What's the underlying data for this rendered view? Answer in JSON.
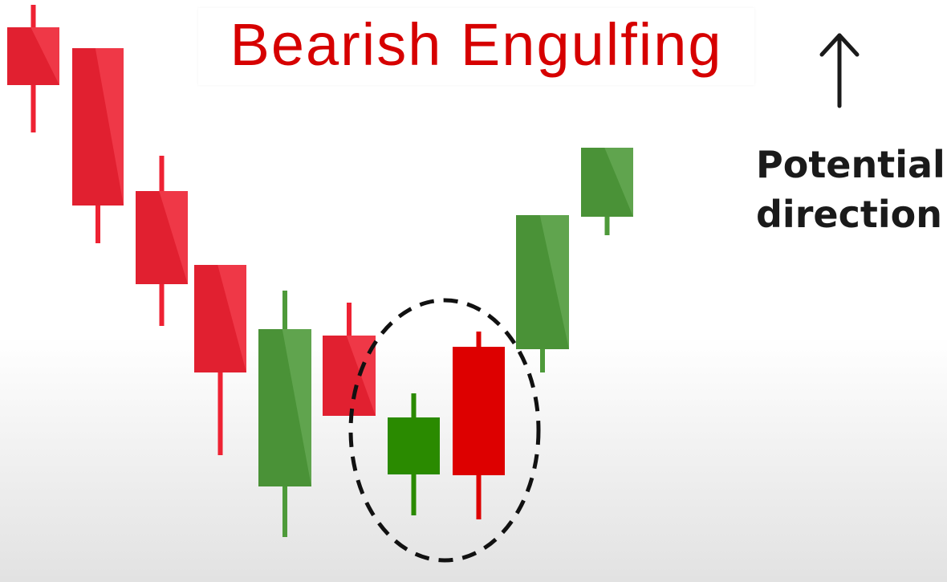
{
  "title": "Bearish Engulfing",
  "annotation": {
    "line1": "Potential",
    "line2": "direction",
    "arrow_icon": "up-arrow"
  },
  "colors": {
    "bearish": "#ee2233",
    "bullish": "#4e9a3a",
    "pattern_bullish": "#2a8a00",
    "pattern_bearish": "#dd0000",
    "title": "#d60000",
    "text": "#1a1a1a",
    "circle": "#111111"
  },
  "candles": [
    {
      "direction": "bearish"
    },
    {
      "direction": "bearish"
    },
    {
      "direction": "bearish"
    },
    {
      "direction": "bearish"
    },
    {
      "direction": "bullish"
    },
    {
      "direction": "bearish"
    },
    {
      "direction": "bullish",
      "highlighted": true
    },
    {
      "direction": "bearish",
      "highlighted": true
    },
    {
      "direction": "bullish"
    },
    {
      "direction": "bullish"
    }
  ]
}
